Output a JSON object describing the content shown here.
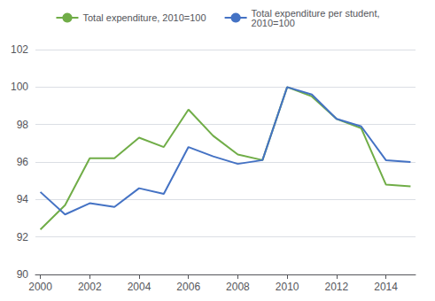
{
  "chart_data": {
    "type": "line",
    "x": [
      2000,
      2001,
      2002,
      2003,
      2004,
      2005,
      2006,
      2007,
      2008,
      2009,
      2010,
      2011,
      2012,
      2013,
      2014,
      2015
    ],
    "series": [
      {
        "name": "Total expenditure, 2010=100",
        "color": "#70ad47",
        "values": [
          92.4,
          93.7,
          96.2,
          96.2,
          97.3,
          96.8,
          98.8,
          97.4,
          96.4,
          96.1,
          100.0,
          99.5,
          98.3,
          97.8,
          94.8,
          94.7
        ]
      },
      {
        "name": "Total expenditure per student,\n2010=100",
        "color": "#4472c4",
        "values": [
          94.4,
          93.2,
          93.8,
          93.6,
          94.6,
          94.3,
          96.8,
          96.3,
          95.9,
          96.1,
          100.0,
          99.6,
          98.3,
          97.9,
          96.1,
          96.0
        ]
      }
    ],
    "xlim": [
      1999.8,
      2015.2
    ],
    "xticks": [
      2000,
      2002,
      2004,
      2006,
      2008,
      2010,
      2012,
      2014
    ],
    "ylim": [
      90,
      102
    ],
    "yticks": [
      90,
      92,
      94,
      96,
      98,
      100,
      102
    ],
    "grid": true,
    "legend": "top"
  }
}
